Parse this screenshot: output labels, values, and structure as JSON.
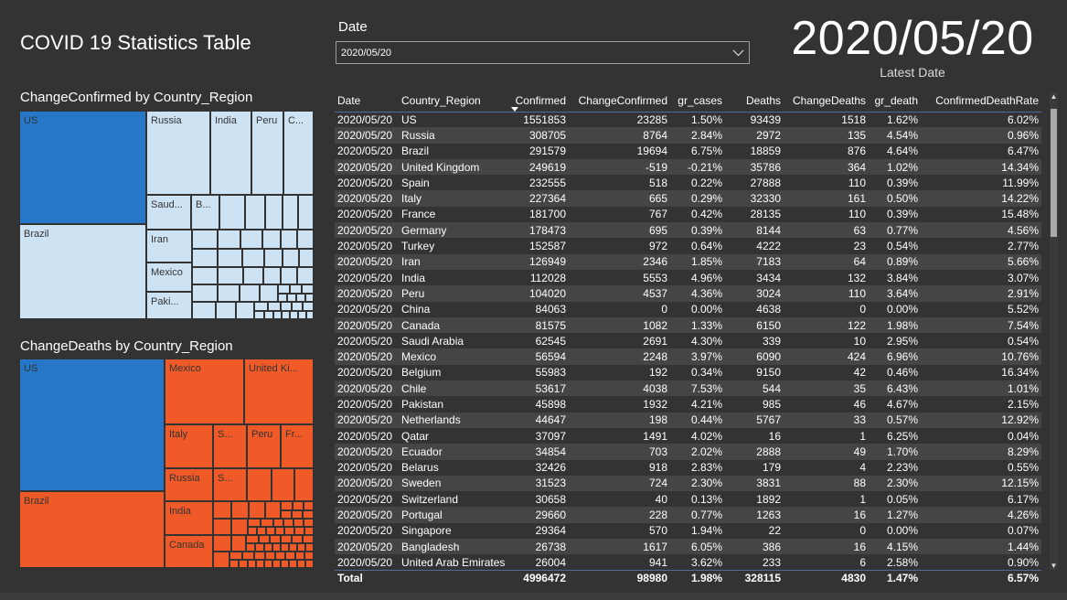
{
  "title": "COVID 19 Statistics Table",
  "slicer": {
    "label": "Date",
    "value": "2020/05/20"
  },
  "card": {
    "value": "2020/05/20",
    "label": "Latest Date"
  },
  "treemap_confirmed": {
    "title": "ChangeConfirmed by Country_Region",
    "labels": {
      "us": "US",
      "brazil": "Brazil",
      "russia": "Russia",
      "india": "India",
      "peru": "Peru",
      "c": "C...",
      "saudi": "Saud...",
      "b": "B...",
      "iran": "Iran",
      "mexico": "Mexico",
      "paki": "Paki..."
    },
    "colors": {
      "highlight": "#2677c7",
      "base": "#cde3f4"
    }
  },
  "treemap_deaths": {
    "title": "ChangeDeaths by Country_Region",
    "labels": {
      "us": "US",
      "brazil": "Brazil",
      "mexico": "Mexico",
      "uk": "United Ki...",
      "italy": "Italy",
      "s1": "S...",
      "peru": "Peru",
      "fr": "Fr...",
      "russia": "Russia",
      "s2": "S...",
      "india": "India",
      "canada": "Canada"
    },
    "colors": {
      "highlight": "#2677c7",
      "base": "#f05a28"
    }
  },
  "table": {
    "columns": [
      "Date",
      "Country_Region",
      "Confirmed",
      "ChangeConfirmed",
      "gr_cases",
      "Deaths",
      "ChangeDeaths",
      "gr_death",
      "ConfirmedDeathRate"
    ],
    "rows": [
      [
        "2020/05/20",
        "US",
        "1551853",
        "23285",
        "1.50%",
        "93439",
        "1518",
        "1.62%",
        "6.02%"
      ],
      [
        "2020/05/20",
        "Russia",
        "308705",
        "8764",
        "2.84%",
        "2972",
        "135",
        "4.54%",
        "0.96%"
      ],
      [
        "2020/05/20",
        "Brazil",
        "291579",
        "19694",
        "6.75%",
        "18859",
        "876",
        "4.64%",
        "6.47%"
      ],
      [
        "2020/05/20",
        "United Kingdom",
        "249619",
        "-519",
        "-0.21%",
        "35786",
        "364",
        "1.02%",
        "14.34%"
      ],
      [
        "2020/05/20",
        "Spain",
        "232555",
        "518",
        "0.22%",
        "27888",
        "110",
        "0.39%",
        "11.99%"
      ],
      [
        "2020/05/20",
        "Italy",
        "227364",
        "665",
        "0.29%",
        "32330",
        "161",
        "0.50%",
        "14.22%"
      ],
      [
        "2020/05/20",
        "France",
        "181700",
        "767",
        "0.42%",
        "28135",
        "110",
        "0.39%",
        "15.48%"
      ],
      [
        "2020/05/20",
        "Germany",
        "178473",
        "695",
        "0.39%",
        "8144",
        "63",
        "0.77%",
        "4.56%"
      ],
      [
        "2020/05/20",
        "Turkey",
        "152587",
        "972",
        "0.64%",
        "4222",
        "23",
        "0.54%",
        "2.77%"
      ],
      [
        "2020/05/20",
        "Iran",
        "126949",
        "2346",
        "1.85%",
        "7183",
        "64",
        "0.89%",
        "5.66%"
      ],
      [
        "2020/05/20",
        "India",
        "112028",
        "5553",
        "4.96%",
        "3434",
        "132",
        "3.84%",
        "3.07%"
      ],
      [
        "2020/05/20",
        "Peru",
        "104020",
        "4537",
        "4.36%",
        "3024",
        "110",
        "3.64%",
        "2.91%"
      ],
      [
        "2020/05/20",
        "China",
        "84063",
        "0",
        "0.00%",
        "4638",
        "0",
        "0.00%",
        "5.52%"
      ],
      [
        "2020/05/20",
        "Canada",
        "81575",
        "1082",
        "1.33%",
        "6150",
        "122",
        "1.98%",
        "7.54%"
      ],
      [
        "2020/05/20",
        "Saudi Arabia",
        "62545",
        "2691",
        "4.30%",
        "339",
        "10",
        "2.95%",
        "0.54%"
      ],
      [
        "2020/05/20",
        "Mexico",
        "56594",
        "2248",
        "3.97%",
        "6090",
        "424",
        "6.96%",
        "10.76%"
      ],
      [
        "2020/05/20",
        "Belgium",
        "55983",
        "192",
        "0.34%",
        "9150",
        "42",
        "0.46%",
        "16.34%"
      ],
      [
        "2020/05/20",
        "Chile",
        "53617",
        "4038",
        "7.53%",
        "544",
        "35",
        "6.43%",
        "1.01%"
      ],
      [
        "2020/05/20",
        "Pakistan",
        "45898",
        "1932",
        "4.21%",
        "985",
        "46",
        "4.67%",
        "2.15%"
      ],
      [
        "2020/05/20",
        "Netherlands",
        "44647",
        "198",
        "0.44%",
        "5767",
        "33",
        "0.57%",
        "12.92%"
      ],
      [
        "2020/05/20",
        "Qatar",
        "37097",
        "1491",
        "4.02%",
        "16",
        "1",
        "6.25%",
        "0.04%"
      ],
      [
        "2020/05/20",
        "Ecuador",
        "34854",
        "703",
        "2.02%",
        "2888",
        "49",
        "1.70%",
        "8.29%"
      ],
      [
        "2020/05/20",
        "Belarus",
        "32426",
        "918",
        "2.83%",
        "179",
        "4",
        "2.23%",
        "0.55%"
      ],
      [
        "2020/05/20",
        "Sweden",
        "31523",
        "724",
        "2.30%",
        "3831",
        "88",
        "2.30%",
        "12.15%"
      ],
      [
        "2020/05/20",
        "Switzerland",
        "30658",
        "40",
        "0.13%",
        "1892",
        "1",
        "0.05%",
        "6.17%"
      ],
      [
        "2020/05/20",
        "Portugal",
        "29660",
        "228",
        "0.77%",
        "1263",
        "16",
        "1.27%",
        "4.26%"
      ],
      [
        "2020/05/20",
        "Singapore",
        "29364",
        "570",
        "1.94%",
        "22",
        "0",
        "0.00%",
        "0.07%"
      ],
      [
        "2020/05/20",
        "Bangladesh",
        "26738",
        "1617",
        "6.05%",
        "386",
        "16",
        "4.15%",
        "1.44%"
      ],
      [
        "2020/05/20",
        "United Arab Emirates",
        "26004",
        "941",
        "3.62%",
        "233",
        "6",
        "2.58%",
        "0.90%"
      ]
    ],
    "total": [
      "Total",
      "",
      "4996472",
      "98980",
      "1.98%",
      "328115",
      "4830",
      "1.47%",
      "6.57%"
    ]
  }
}
